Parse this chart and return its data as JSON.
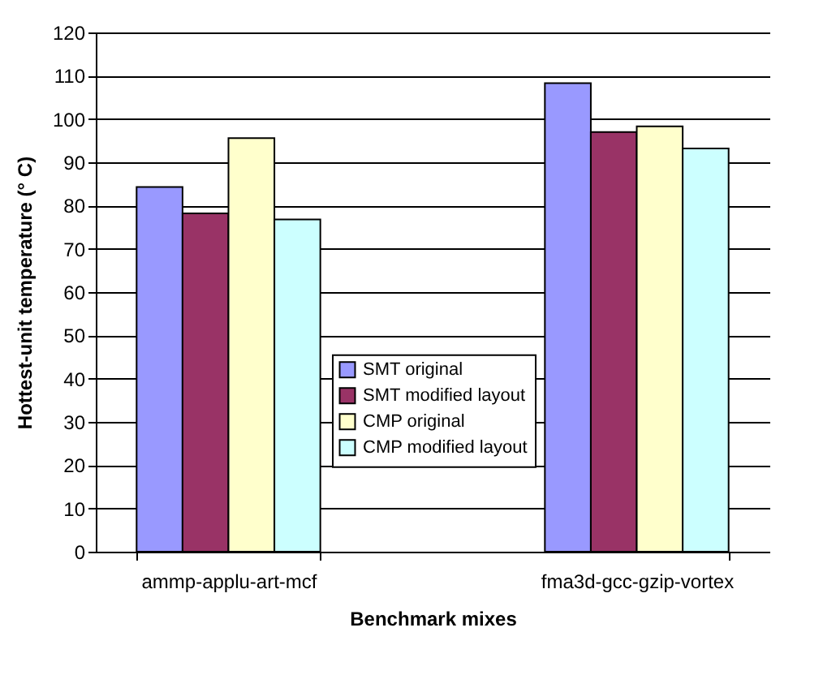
{
  "chart_data": {
    "type": "bar",
    "xlabel": "Benchmark mixes",
    "ylabel": "Hottest-unit temperature (° C)",
    "categories": [
      "ammp-applu-art-mcf",
      "fma3d-gcc-gzip-vortex"
    ],
    "series": [
      {
        "name": "SMT original",
        "color": "#9999ff",
        "values": [
          84.3,
          108.3
        ]
      },
      {
        "name": "SMT modified layout",
        "color": "#993366",
        "values": [
          78.2,
          97.0
        ]
      },
      {
        "name": "CMP original",
        "color": "#ffffcc",
        "values": [
          95.6,
          98.3
        ]
      },
      {
        "name": "CMP modified layout",
        "color": "#ccffff",
        "values": [
          76.8,
          93.2
        ]
      }
    ],
    "ylim": [
      0,
      120
    ],
    "yticks": [
      0,
      10,
      20,
      30,
      40,
      50,
      60,
      70,
      80,
      90,
      100,
      110,
      120
    ],
    "grid": "y",
    "legend": "center"
  }
}
